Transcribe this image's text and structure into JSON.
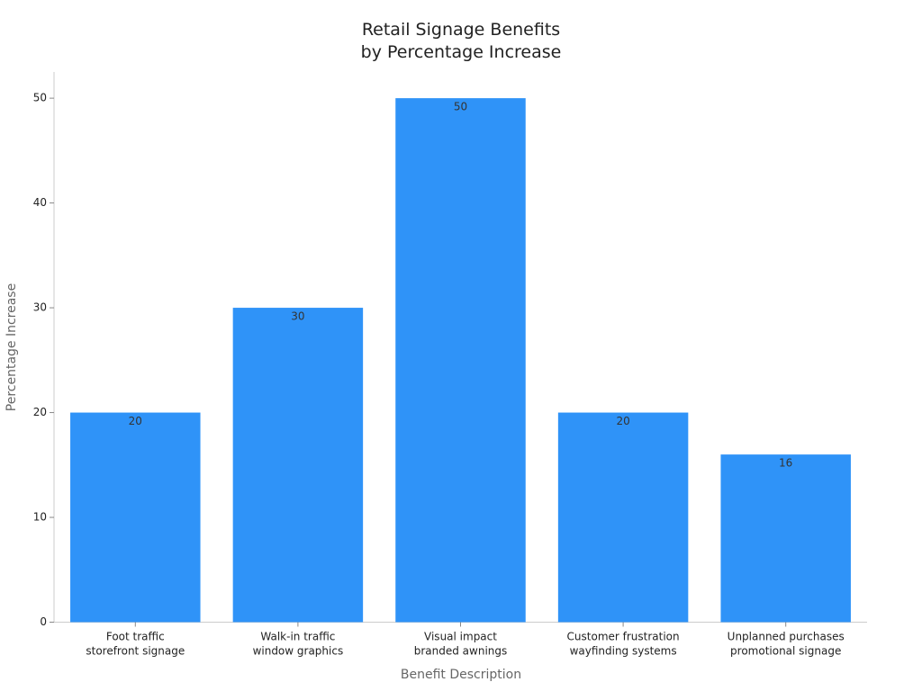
{
  "chart_data": {
    "type": "bar",
    "title": "Retail Signage Benefits\nby Percentage Increase",
    "x_label": "Benefit Description",
    "y_label": "Percentage Increase",
    "categories": [
      "Foot traffic\nstorefront signage",
      "Walk-in traffic\nwindow graphics",
      "Visual impact\nbranded awnings",
      "Customer frustration\nwayfinding systems",
      "Unplanned purchases\npromotional signage"
    ],
    "values": [
      20,
      30,
      50,
      20,
      16
    ],
    "color": "#2f93f8",
    "ylim": [
      0,
      52.5
    ],
    "yticks": [
      0,
      10,
      20,
      30,
      40,
      50
    ],
    "grid": false
  }
}
